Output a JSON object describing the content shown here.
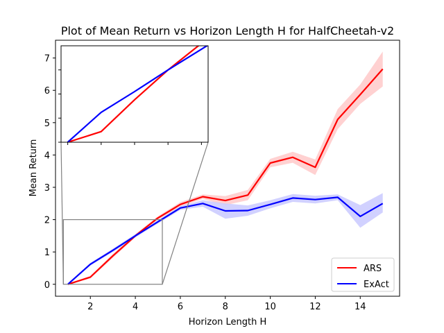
{
  "chart_data": {
    "type": "line",
    "title": "Plot of Mean Return vs Horizon Length H for HalfCheetah-v2",
    "xlabel": "Horizon Length H",
    "ylabel": "Mean Return",
    "xlim": [
      0.45,
      15.75
    ],
    "ylim": [
      -0.37,
      7.55
    ],
    "xticks": [
      2,
      4,
      6,
      8,
      10,
      12,
      14
    ],
    "yticks": [
      0,
      1,
      2,
      3,
      4,
      5,
      6,
      7
    ],
    "x": [
      1,
      2,
      3,
      4,
      5,
      6,
      7,
      8,
      9,
      10,
      11,
      12,
      13,
      14,
      15
    ],
    "series": [
      {
        "name": "ARS",
        "color": "#ff0000",
        "band_color": "#ffcccc",
        "values": [
          0.0,
          0.22,
          0.88,
          1.5,
          2.05,
          2.47,
          2.71,
          2.59,
          2.76,
          3.75,
          3.93,
          3.62,
          5.1,
          5.87,
          6.66
        ],
        "lower": [
          0.0,
          0.18,
          0.82,
          1.45,
          2.0,
          2.4,
          2.64,
          2.45,
          2.6,
          3.62,
          3.76,
          3.38,
          4.8,
          5.58,
          6.12
        ],
        "upper": [
          0.0,
          0.26,
          0.94,
          1.55,
          2.1,
          2.54,
          2.78,
          2.73,
          2.92,
          3.88,
          4.1,
          3.86,
          5.42,
          6.18,
          7.2
        ]
      },
      {
        "name": "ExAct",
        "color": "#0000ff",
        "band_color": "#ccccff",
        "values": [
          0.0,
          0.62,
          1.05,
          1.5,
          1.93,
          2.36,
          2.5,
          2.27,
          2.28,
          2.47,
          2.67,
          2.62,
          2.69,
          2.1,
          2.5
        ],
        "lower": [
          0.0,
          0.58,
          1.0,
          1.45,
          1.88,
          2.3,
          2.4,
          2.03,
          2.12,
          2.35,
          2.55,
          2.5,
          2.6,
          1.75,
          2.22
        ],
        "upper": [
          0.0,
          0.66,
          1.1,
          1.55,
          1.98,
          2.42,
          2.6,
          2.5,
          2.44,
          2.6,
          2.79,
          2.74,
          2.78,
          2.45,
          2.82
        ]
      }
    ],
    "legend": {
      "placement": "lower-right",
      "entries": [
        "ARS",
        "ExAct"
      ]
    },
    "grid": false,
    "inset": {
      "placement": "upper-left",
      "xlim": [
        0.8,
        5.2
      ],
      "ylim": [
        0.0,
        2.0
      ],
      "ytick_labels": [
        "4",
        "5",
        "6",
        "7"
      ],
      "yticks_data": [
        0.0,
        0.5,
        1.0,
        1.5
      ],
      "xticks_data": [
        1,
        2,
        3,
        4,
        5
      ]
    }
  }
}
